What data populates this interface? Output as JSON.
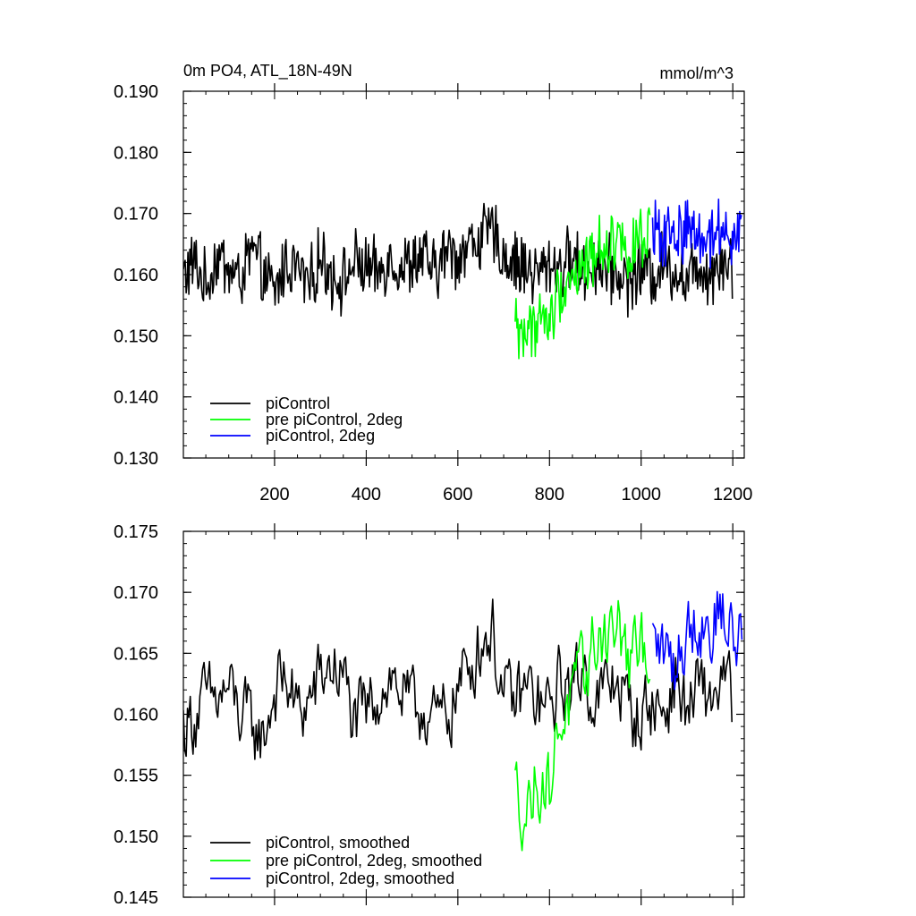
{
  "chart_data": [
    {
      "type": "line",
      "title": "0m PO4, ATL_18N-49N",
      "units": "mmol/m^3",
      "xlim": [
        1,
        1225
      ],
      "ylim": [
        0.13,
        0.19
      ],
      "x_ticks": [
        200,
        400,
        600,
        800,
        1000,
        1200
      ],
      "x_tick_labels": [
        "200",
        "400",
        "600",
        "800",
        "1000",
        "1200"
      ],
      "y_ticks": [
        0.13,
        0.14,
        0.15,
        0.16,
        0.17,
        0.18,
        0.19
      ],
      "y_tick_labels": [
        "0.130",
        "0.140",
        "0.150",
        "0.160",
        "0.170",
        "0.180",
        "0.190"
      ],
      "legend_position": "bottom-left",
      "grid": false,
      "series": [
        {
          "name": "piControl",
          "color": "#000000",
          "x": [
            1,
            25,
            50,
            75,
            100,
            125,
            150,
            175,
            200,
            225,
            250,
            275,
            300,
            325,
            350,
            375,
            400,
            425,
            450,
            475,
            500,
            525,
            550,
            575,
            600,
            625,
            650,
            675,
            700,
            725,
            750,
            775,
            800,
            825,
            850,
            875,
            900,
            925,
            950,
            975,
            1000,
            1025,
            1050,
            1075,
            1100,
            1125,
            1150,
            1175,
            1200
          ],
          "y": [
            0.16,
            0.162,
            0.158,
            0.163,
            0.161,
            0.159,
            0.164,
            0.16,
            0.157,
            0.162,
            0.161,
            0.158,
            0.163,
            0.16,
            0.159,
            0.162,
            0.161,
            0.16,
            0.163,
            0.161,
            0.162,
            0.163,
            0.16,
            0.164,
            0.163,
            0.165,
            0.166,
            0.167,
            0.163,
            0.162,
            0.161,
            0.16,
            0.162,
            0.161,
            0.163,
            0.16,
            0.162,
            0.161,
            0.16,
            0.159,
            0.161,
            0.16,
            0.162,
            0.161,
            0.159,
            0.162,
            0.16,
            0.163,
            0.161
          ],
          "amplitude": 0.0045
        },
        {
          "name": "pre piControl, 2deg",
          "color": "#00ff00",
          "x": [
            725,
            750,
            775,
            800,
            825,
            850,
            875,
            900,
            925,
            950,
            975,
            1000,
            1020
          ],
          "y": [
            0.152,
            0.15,
            0.153,
            0.152,
            0.158,
            0.16,
            0.161,
            0.164,
            0.165,
            0.166,
            0.164,
            0.165,
            0.166
          ],
          "amplitude": 0.0045
        },
        {
          "name": "piControl, 2deg",
          "color": "#0000ff",
          "x": [
            1025,
            1050,
            1075,
            1100,
            1125,
            1150,
            1175,
            1200,
            1220
          ],
          "y": [
            0.166,
            0.167,
            0.166,
            0.168,
            0.167,
            0.166,
            0.168,
            0.167,
            0.168
          ],
          "amplitude": 0.0045
        }
      ]
    },
    {
      "type": "line",
      "title": "",
      "xlim": [
        1,
        1225
      ],
      "ylim": [
        0.145,
        0.175
      ],
      "x_ticks": [
        200,
        400,
        600,
        800,
        1000,
        1200
      ],
      "y_ticks": [
        0.145,
        0.15,
        0.155,
        0.16,
        0.165,
        0.17,
        0.175
      ],
      "y_tick_labels": [
        "0.145",
        "0.150",
        "0.155",
        "0.160",
        "0.165",
        "0.170",
        "0.175"
      ],
      "legend_position": "bottom-left",
      "grid": false,
      "series": [
        {
          "name": "piControl, smoothed",
          "color": "#000000",
          "x": [
            1,
            25,
            50,
            75,
            100,
            125,
            150,
            175,
            200,
            225,
            250,
            275,
            300,
            325,
            350,
            375,
            400,
            425,
            450,
            475,
            500,
            525,
            550,
            575,
            600,
            625,
            650,
            675,
            700,
            725,
            750,
            775,
            800,
            825,
            850,
            875,
            900,
            925,
            950,
            975,
            1000,
            1025,
            1050,
            1075,
            1100,
            1125,
            1150,
            1175,
            1200
          ],
          "y": [
            0.159,
            0.16,
            0.161,
            0.161,
            0.162,
            0.16,
            0.159,
            0.158,
            0.162,
            0.163,
            0.16,
            0.161,
            0.163,
            0.164,
            0.163,
            0.159,
            0.16,
            0.162,
            0.163,
            0.162,
            0.16,
            0.161,
            0.159,
            0.16,
            0.162,
            0.164,
            0.166,
            0.167,
            0.161,
            0.161,
            0.162,
            0.161,
            0.16,
            0.163,
            0.162,
            0.164,
            0.161,
            0.162,
            0.163,
            0.16,
            0.16,
            0.161,
            0.16,
            0.163,
            0.16,
            0.162,
            0.161,
            0.163,
            0.161
          ],
          "amplitude": 0.0028
        },
        {
          "name": "pre piControl, 2deg, smoothed",
          "color": "#00ff00",
          "x": [
            725,
            750,
            775,
            800,
            825,
            850,
            875,
            900,
            925,
            950,
            975,
            1000,
            1020
          ],
          "y": [
            0.154,
            0.152,
            0.155,
            0.154,
            0.16,
            0.161,
            0.163,
            0.166,
            0.167,
            0.167,
            0.164,
            0.165,
            0.166
          ],
          "amplitude": 0.0028
        },
        {
          "name": "piControl, 2deg, smoothed",
          "color": "#0000ff",
          "x": [
            1025,
            1050,
            1075,
            1100,
            1125,
            1150,
            1175,
            1200,
            1220
          ],
          "y": [
            0.166,
            0.165,
            0.164,
            0.167,
            0.168,
            0.167,
            0.169,
            0.166,
            0.167
          ],
          "amplitude": 0.0028
        }
      ]
    }
  ]
}
